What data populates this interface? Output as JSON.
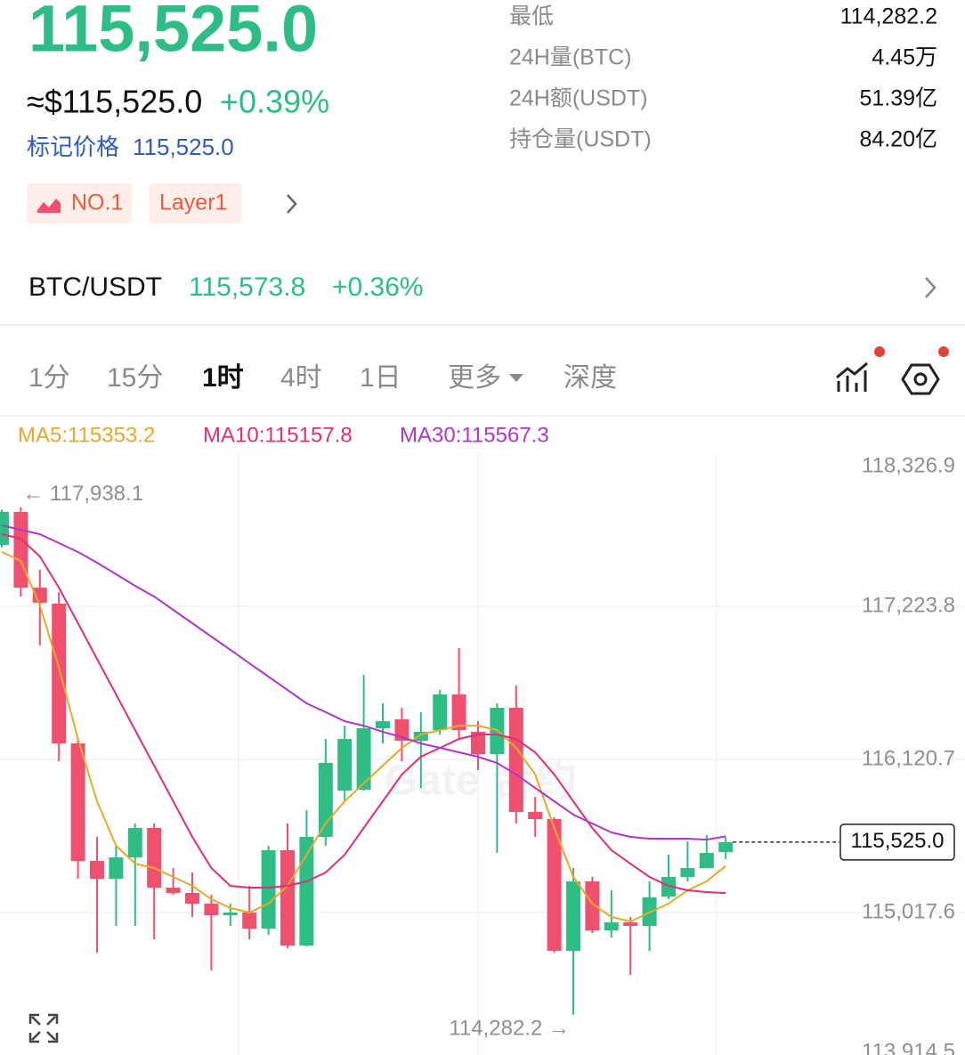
{
  "header": {
    "price": "115,525.0",
    "usd_price": "≈$115,525.0",
    "change": "+0.39%",
    "mark_label": "标记价格",
    "mark_price": "115,525.0",
    "tags": [
      "NO.1",
      "Layer1"
    ]
  },
  "stats": [
    {
      "label": "最低",
      "value": "114,282.2"
    },
    {
      "label": "24H量(BTC)",
      "value": "4.45万"
    },
    {
      "label": "24H额(USDT)",
      "value": "51.39亿"
    },
    {
      "label": "持仓量(USDT)",
      "value": "84.20亿"
    }
  ],
  "pair": {
    "name": "BTC/USDT",
    "price": "115,573.8",
    "change": "+0.36%"
  },
  "tabs": [
    "1分",
    "15分",
    "1时",
    "4时",
    "1日",
    "更多",
    "深度"
  ],
  "chart_data": {
    "type": "candlestick",
    "watermark": "Gate 合约",
    "up_color": "#2ebd85",
    "down_color": "#f0506e",
    "open": [
      117666,
      117904,
      117358,
      117243,
      116236,
      115390,
      115261,
      115415,
      115627,
      115197,
      115159,
      115082,
      114998,
      115018,
      114902,
      115467,
      114780,
      115563,
      115896,
      115903,
      116345,
      116409,
      116255,
      116332,
      116589,
      116320,
      116159,
      116493,
      115742,
      115691,
      114742,
      115242,
      114889,
      114947,
      114921,
      115133,
      115274,
      115338,
      115454
    ],
    "high": [
      117920,
      117938.1,
      117487,
      117326,
      116268,
      115563,
      115499,
      115659,
      115659,
      115338,
      115306,
      115146,
      115082,
      115210,
      115499,
      115659,
      115755,
      116268,
      116364,
      116730,
      116525,
      116493,
      116461,
      116621,
      116922,
      116396,
      116525,
      116653,
      115851,
      115704,
      115338,
      115274,
      115178,
      114986,
      115242,
      115434,
      115531,
      115576,
      115563
    ],
    "low": [
      117647,
      117294,
      116942,
      116108,
      115261,
      114729,
      114921,
      114921,
      114825,
      115146,
      114986,
      114601,
      114921,
      114825,
      114857,
      114761,
      114774,
      115499,
      115819,
      115896,
      116236,
      116108,
      115915,
      116300,
      116268,
      116044,
      115447,
      115659,
      115563,
      114729,
      114282.2,
      114870,
      114838,
      114569,
      114742,
      115114,
      115242,
      115338,
      115402
    ],
    "close": [
      117904,
      117358,
      117250,
      116236,
      115390,
      115261,
      115415,
      115627,
      115197,
      115159,
      115082,
      114998,
      115018,
      114902,
      115467,
      114780,
      115563,
      116095,
      116268,
      116345,
      116396,
      116255,
      116320,
      116589,
      116332,
      116159,
      116493,
      115742,
      115691,
      114742,
      115242,
      114889,
      114947,
      114921,
      115127,
      115274,
      115338,
      115447,
      115525.0
    ],
    "series": [
      {
        "name": "MA5",
        "legend_label": "MA5:115353.2",
        "color": "#e8a92a",
        "values": [
          117615,
          117551,
          117230,
          116781,
          116268,
          115819,
          115499,
          115370,
          115338,
          115274,
          115210,
          115114,
          115050,
          115018,
          115082,
          115210,
          115434,
          115659,
          115819,
          115948,
          116076,
          116204,
          116300,
          116332,
          116364,
          116364,
          116332,
          116204,
          116012,
          115627,
          115274,
          115082,
          114986,
          114953,
          115018,
          115082,
          115178,
          115242,
          115353.2
        ]
      },
      {
        "name": "MA10",
        "legend_label": "MA10:115157.8",
        "color": "#df2f7c",
        "values": [
          117743,
          117711,
          117583,
          117358,
          117102,
          116845,
          116589,
          116332,
          116076,
          115819,
          115563,
          115338,
          115210,
          115197,
          115197,
          115210,
          115242,
          115306,
          115434,
          115627,
          115819,
          116012,
          116140,
          116204,
          116268,
          116300,
          116300,
          116268,
          116172,
          116012,
          115819,
          115627,
          115467,
          115370,
          115274,
          115210,
          115178,
          115165,
          115157.8
        ]
      },
      {
        "name": "MA30",
        "legend_label": "MA30:115567.3",
        "color": "#b236c8",
        "values": [
          117807,
          117775,
          117743,
          117679,
          117615,
          117538,
          117455,
          117371,
          117294,
          117198,
          117102,
          117006,
          116910,
          116813,
          116717,
          116621,
          116525,
          116461,
          116396,
          116364,
          116320,
          116281,
          116236,
          116204,
          116172,
          116140,
          116095,
          116012,
          115915,
          115819,
          115723,
          115659,
          115595,
          115563,
          115550,
          115550,
          115550,
          115543,
          115567.3
        ]
      }
    ],
    "ylim": [
      113914.5,
      118326.9
    ],
    "yticks": [
      {
        "value": 118326.9,
        "label": "118,326.9"
      },
      {
        "value": 117223.8,
        "label": "117,223.8"
      },
      {
        "value": 116120.7,
        "label": "116,120.7"
      },
      {
        "value": 115017.6,
        "label": "115,017.6"
      },
      {
        "value": 113914.5,
        "label": "113,914.5"
      }
    ],
    "grid": true,
    "max_annotation": "← 117,938.1",
    "min_annotation": "114,282.2 →",
    "last_price_label": "115,525.0"
  }
}
